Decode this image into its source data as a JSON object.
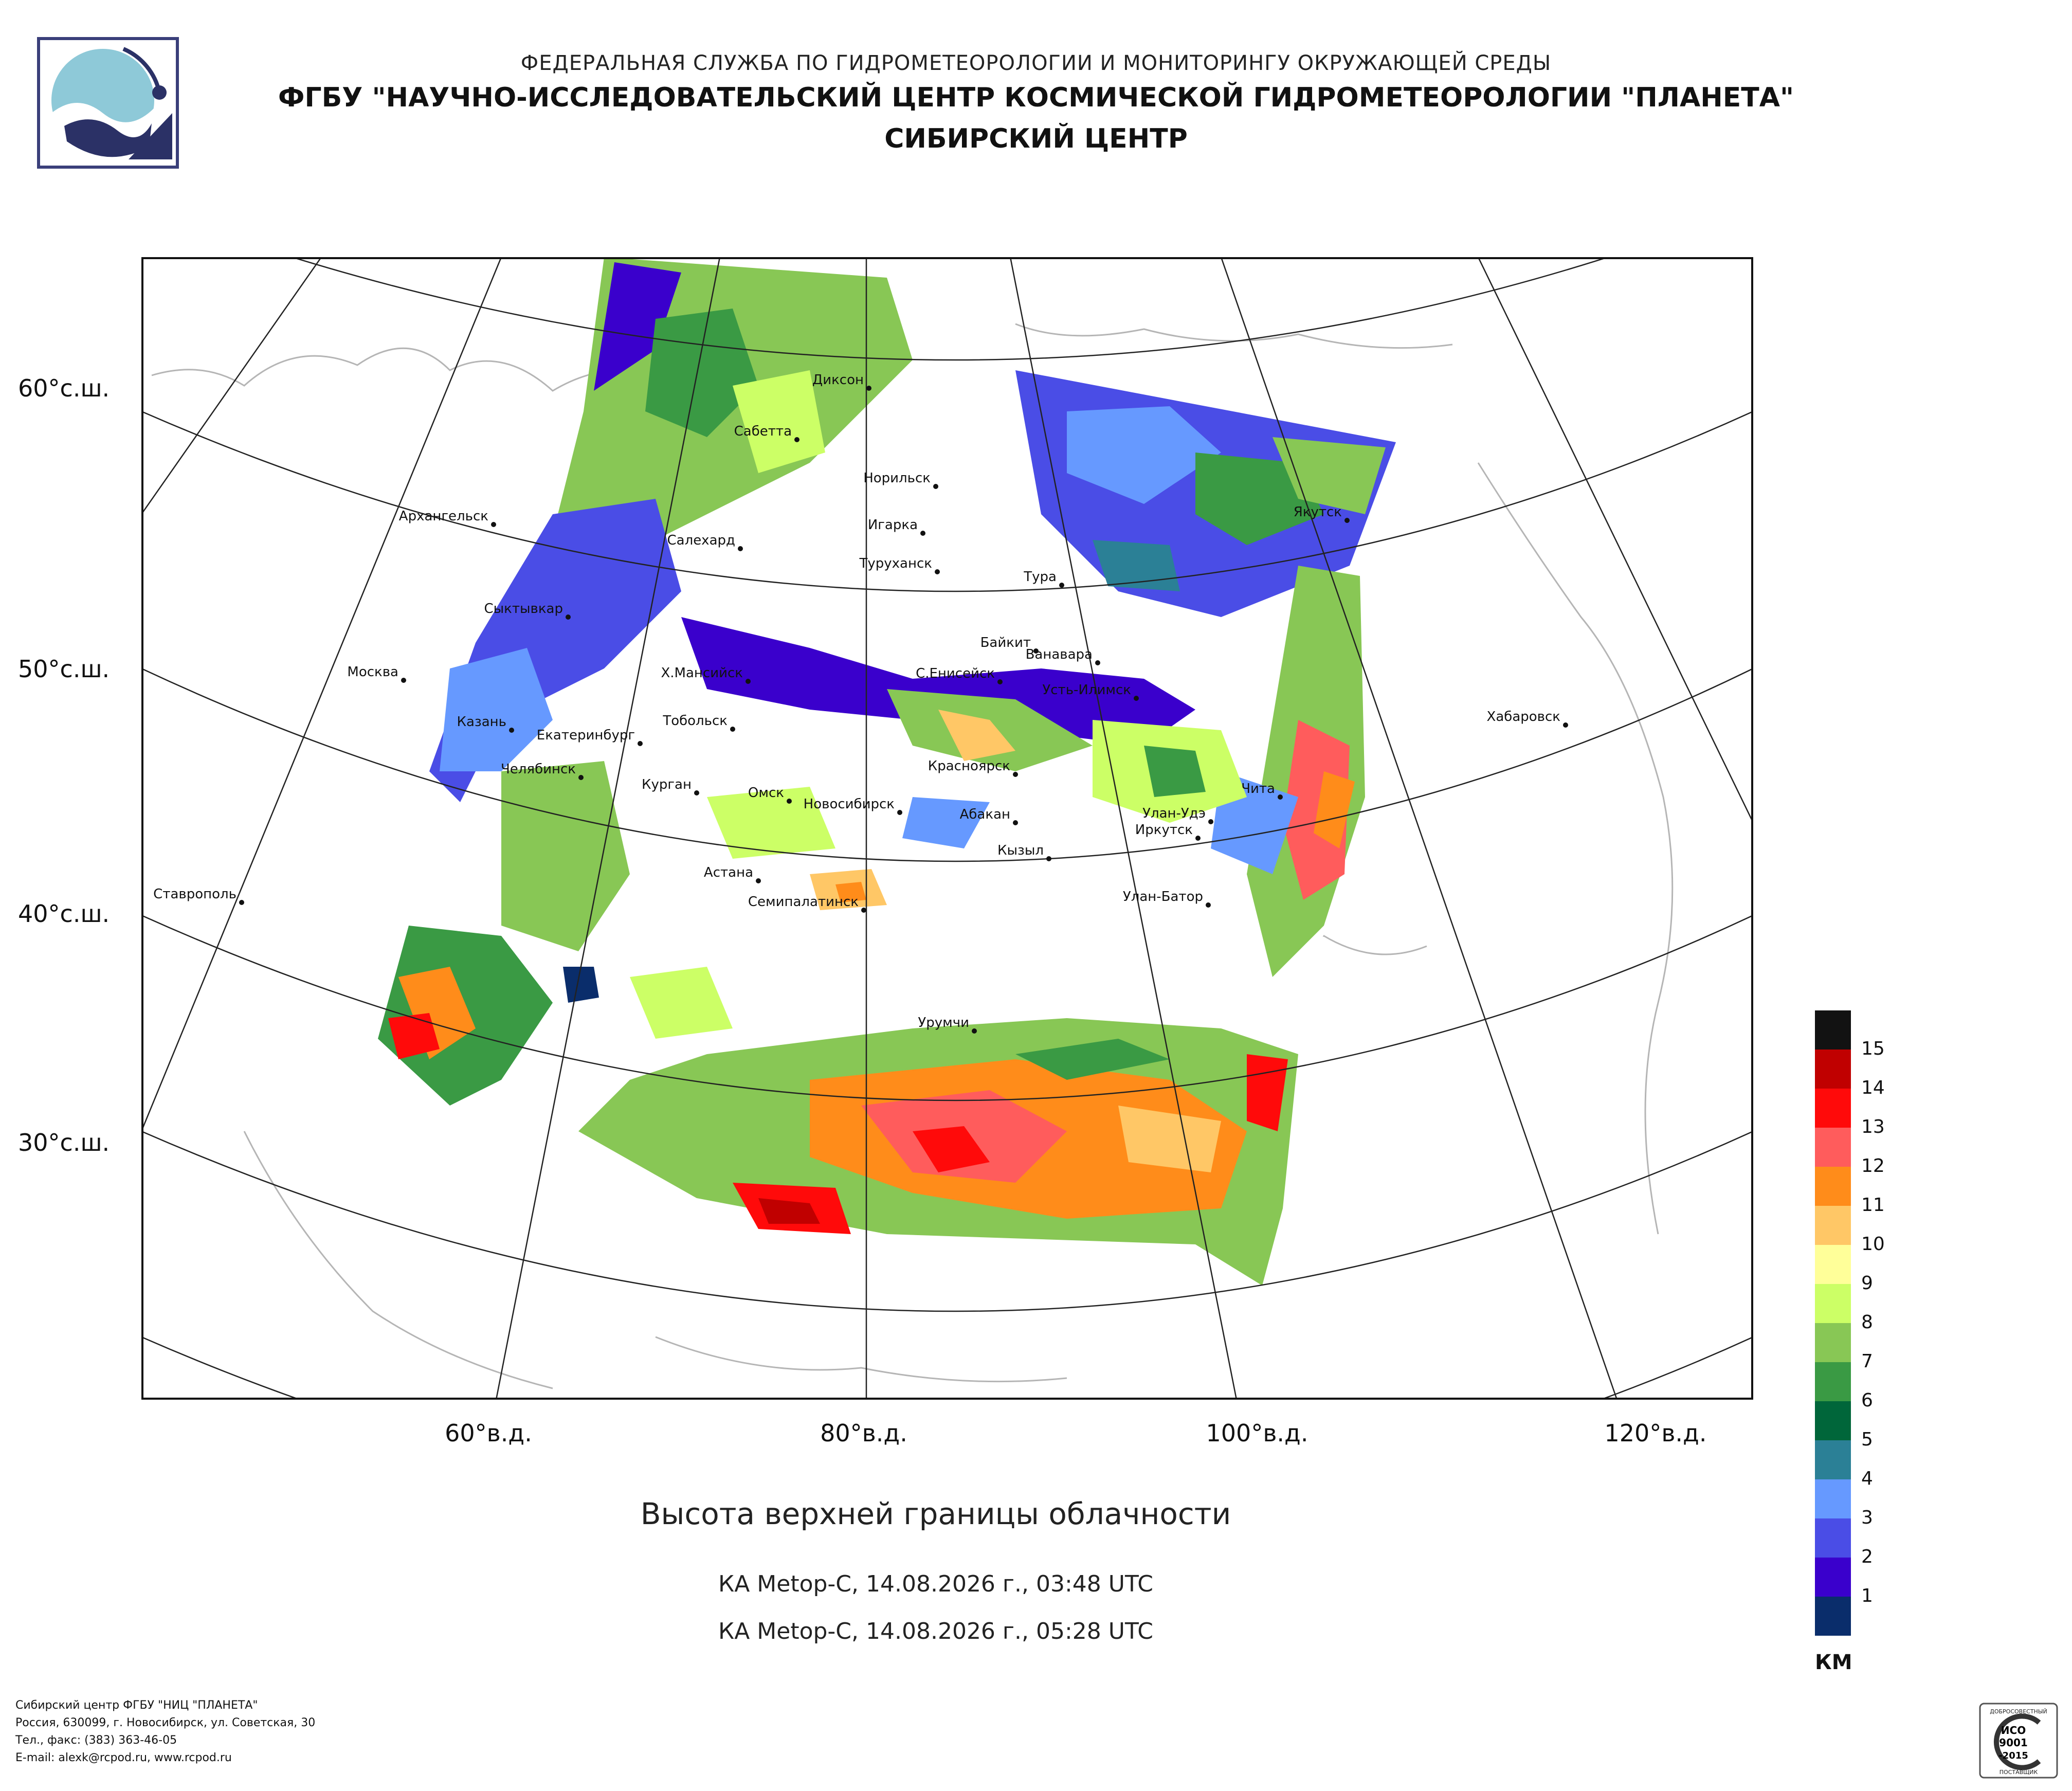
{
  "header": {
    "line1": "ФЕДЕРАЛЬНАЯ СЛУЖБА ПО ГИДРОМЕТЕОРОЛОГИИ И МОНИТОРИНГУ ОКРУЖАЮЩЕЙ СРЕДЫ",
    "line2": "ФГБУ \"НАУЧНО-ИССЛЕДОВАТЕЛЬСКИЙ ЦЕНТР КОСМИЧЕСКОЙ ГИДРОМЕТЕОРОЛОГИИ \"ПЛАНЕТА\"",
    "line3": "СИБИРСКИЙ ЦЕНТР"
  },
  "map": {
    "lat_labels": [
      "60°с.ш.",
      "50°с.ш.",
      "40°с.ш.",
      "30°с.ш."
    ],
    "lon_labels": [
      "60°в.д.",
      "80°в.д.",
      "100°в.д.",
      "120°в.д."
    ],
    "cities": [
      "Диксон",
      "Сабетта",
      "Норильск",
      "Игарка",
      "Туруханск",
      "Якутск",
      "Архангельск",
      "Салехард",
      "Сыктывкар",
      "Тура",
      "Байкит",
      "Ванавара",
      "Москва",
      "Х.Мансийск",
      "С.Енисейск",
      "Усть-Илимск",
      "Хабаровск",
      "Казань",
      "Тобольск",
      "Екатеринбург",
      "Красноярск",
      "Чита",
      "Челябинск",
      "Курган",
      "Омск",
      "Новосибирск",
      "Абакан",
      "Улан-Удэ",
      "Иркутск",
      "Кызыл",
      "Астана",
      "Ставрополь",
      "Семипалатинск",
      "Улан-Батор",
      "Урумчи"
    ]
  },
  "subtitle": "Высота верхней границы облачности",
  "passes": [
    "КА Metop-C, 14.08.2026 г., 03:48 UTC",
    "КА Metop-C, 14.08.2026 г., 05:28 UTC"
  ],
  "legend": {
    "unit": "КМ",
    "levels": [
      {
        "label": "15",
        "color": "#121212"
      },
      {
        "label": "14",
        "color": "#c00000"
      },
      {
        "label": "13",
        "color": "#ff0a0a"
      },
      {
        "label": "12",
        "color": "#ff5c5c"
      },
      {
        "label": "11",
        "color": "#ff8c1a"
      },
      {
        "label": "10",
        "color": "#ffc766"
      },
      {
        "label": "9",
        "color": "#ffff99"
      },
      {
        "label": "8",
        "color": "#ccff66"
      },
      {
        "label": "7",
        "color": "#88c755"
      },
      {
        "label": "6",
        "color": "#3a9a44"
      },
      {
        "label": "5",
        "color": "#00663a"
      },
      {
        "label": "4",
        "color": "#2b8096"
      },
      {
        "label": "3",
        "color": "#6699ff"
      },
      {
        "label": "2",
        "color": "#4a4de6"
      },
      {
        "label": "1",
        "color": "#3a00cc"
      },
      {
        "label": "",
        "color": "#0a2d6b"
      }
    ]
  },
  "footer": {
    "line1": "Сибирский центр ФГБУ \"НИЦ \"ПЛАНЕТА\"",
    "line2": "Россия, 630099, г. Новосибирск, ул. Советская, 30",
    "line3": "Тел., факс: (383) 363-46-05",
    "line4": "E-mail: alexk@rcpod.ru, www.rcpod.ru"
  },
  "iso": {
    "text_top": "ДОБРОСОВЕСТНЫЙ",
    "line1": "ИСО",
    "line2": "9001",
    "line3": "-2015",
    "text_bottom": "ПОСТАВЩИК"
  }
}
